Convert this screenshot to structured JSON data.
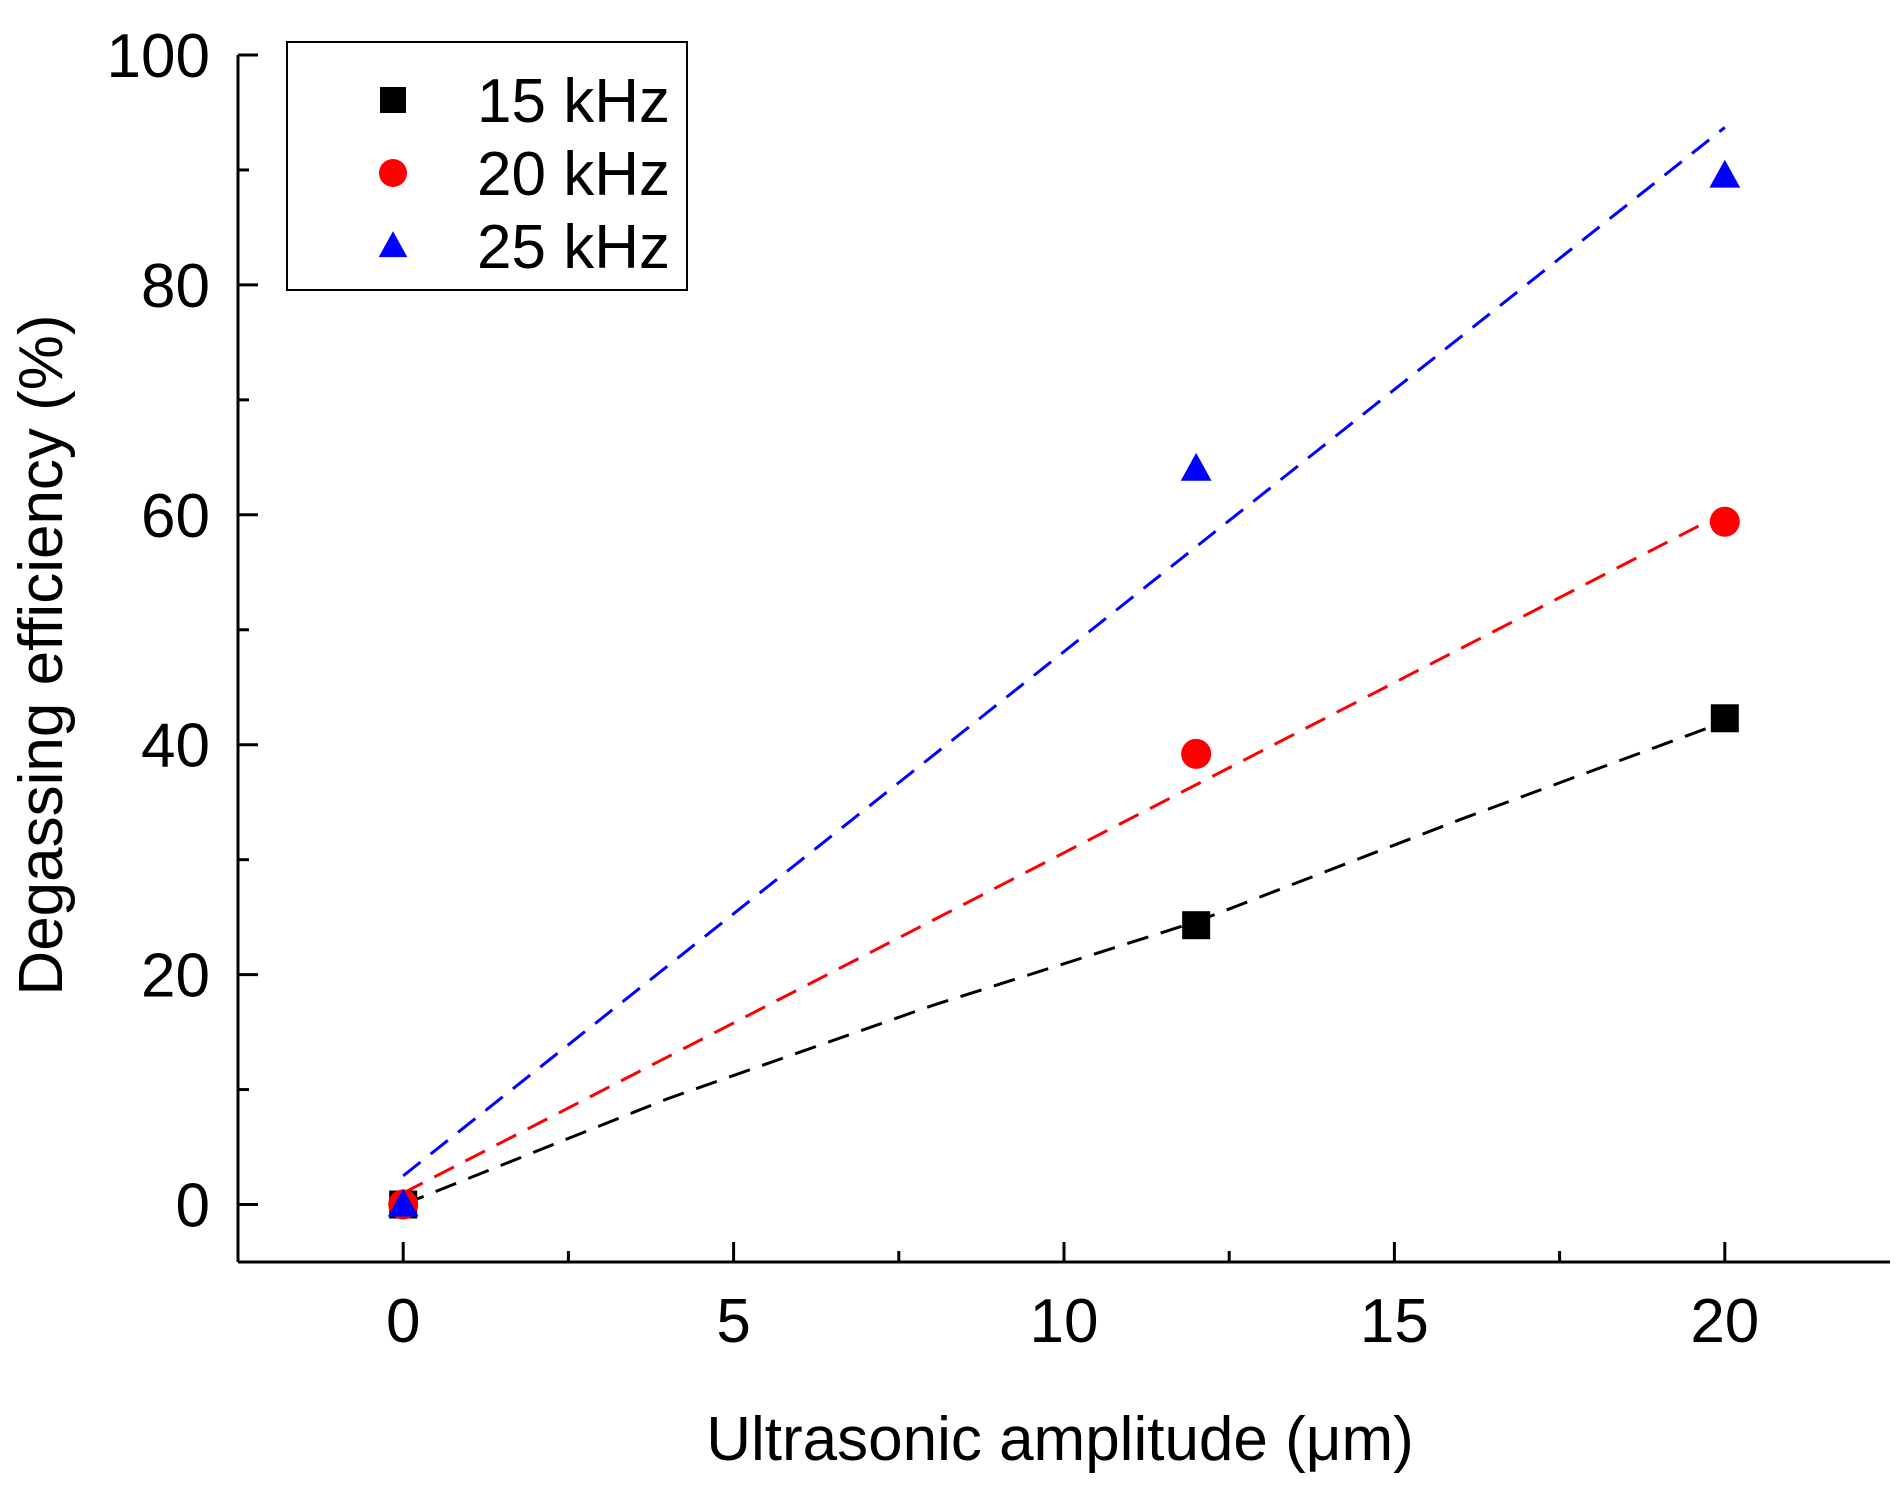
{
  "chart_data": {
    "type": "scatter",
    "title": "",
    "xlabel": "Ultrasonic amplitude (μm)",
    "ylabel": "Degassing efficiency (%)",
    "xlim": [
      -2.5,
      22.5
    ],
    "ylim": [
      -5,
      100
    ],
    "x_major_ticks": [
      0,
      5,
      10,
      15,
      20
    ],
    "x_minor_ticks": [
      2.5,
      7.5,
      12.5,
      17.5
    ],
    "y_major_ticks": [
      0,
      20,
      40,
      60,
      80,
      100
    ],
    "y_minor_ticks": [
      10,
      30,
      50,
      70,
      90
    ],
    "x_tick_labels": [
      "0",
      "5",
      "10",
      "15",
      "20"
    ],
    "y_tick_labels": [
      "0",
      "20",
      "40",
      "60",
      "80",
      "100"
    ],
    "grid": false,
    "legend_position": "top-left",
    "series": [
      {
        "name": "15 kHz",
        "marker": "square",
        "color": "#000000",
        "x": [
          0,
          12,
          20
        ],
        "y": [
          0,
          24.3,
          42.3
        ],
        "fit": {
          "style": "dashed",
          "x": [
            0,
            4,
            8,
            12,
            16,
            20
          ],
          "y": [
            0,
            9.2,
            17.3,
            24.6,
            33.5,
            42.0
          ]
        }
      },
      {
        "name": "20 kHz",
        "marker": "circle",
        "color": "#ff0000",
        "x": [
          0,
          12,
          20
        ],
        "y": [
          0,
          39.2,
          59.4
        ],
        "fit": {
          "style": "dashed",
          "x": [
            0,
            20
          ],
          "y": [
            1.0,
            60.2
          ]
        }
      },
      {
        "name": "25 kHz",
        "marker": "triangle",
        "color": "#0000ff",
        "x": [
          0,
          12,
          20
        ],
        "y": [
          0,
          64.0,
          89.5
        ],
        "fit": {
          "style": "dashed",
          "x": [
            0,
            20
          ],
          "y": [
            2.5,
            93.7
          ]
        }
      }
    ]
  }
}
